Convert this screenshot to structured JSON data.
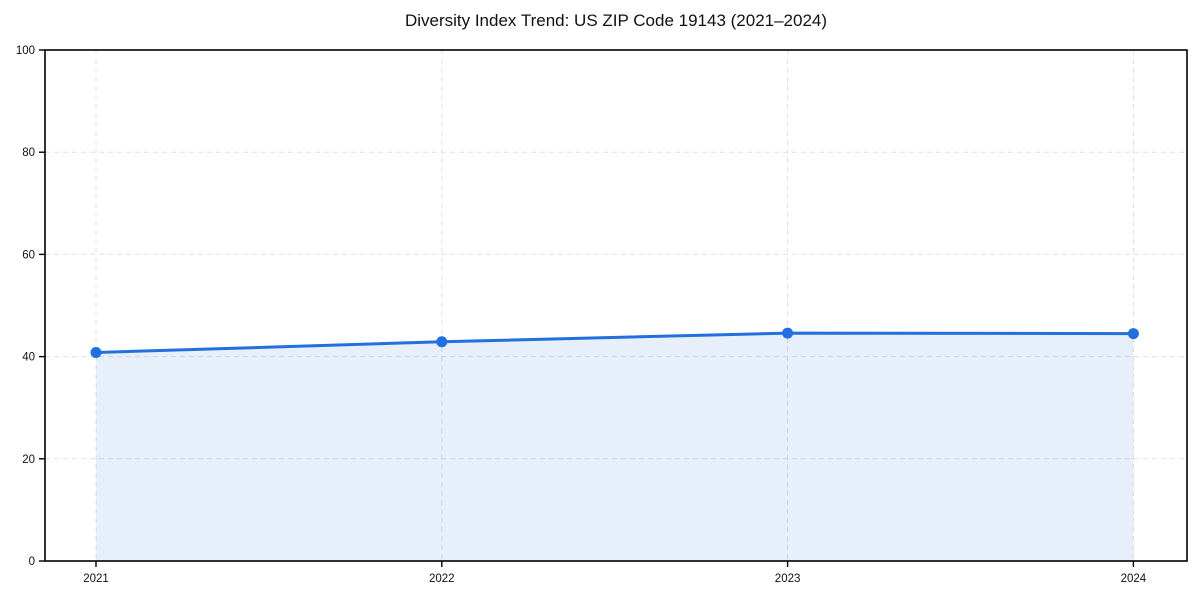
{
  "chart_data": {
    "type": "area",
    "title": "Diversity Index Trend: US ZIP Code 19143 (2021–2024)",
    "categories": [
      "2021",
      "2022",
      "2023",
      "2024"
    ],
    "series": [
      {
        "name": "Diversity Index",
        "values": [
          40.8,
          42.9,
          44.6,
          44.5
        ]
      }
    ],
    "xlabel": "",
    "ylabel": "",
    "ylim": [
      0,
      100
    ],
    "yticks": [
      0,
      20,
      40,
      60,
      80,
      100
    ],
    "grid": true,
    "grid_style": "dashed",
    "legend": false,
    "marker": "circle",
    "colors": {
      "line": "#2170dd",
      "marker": "#2170dd",
      "fill_opacity": 0.11,
      "grid": "#e0e0e0",
      "spine": "#000000",
      "tick": "#000000",
      "tick_label": "#111111",
      "title": "#111111",
      "background": "#ffffff"
    }
  }
}
